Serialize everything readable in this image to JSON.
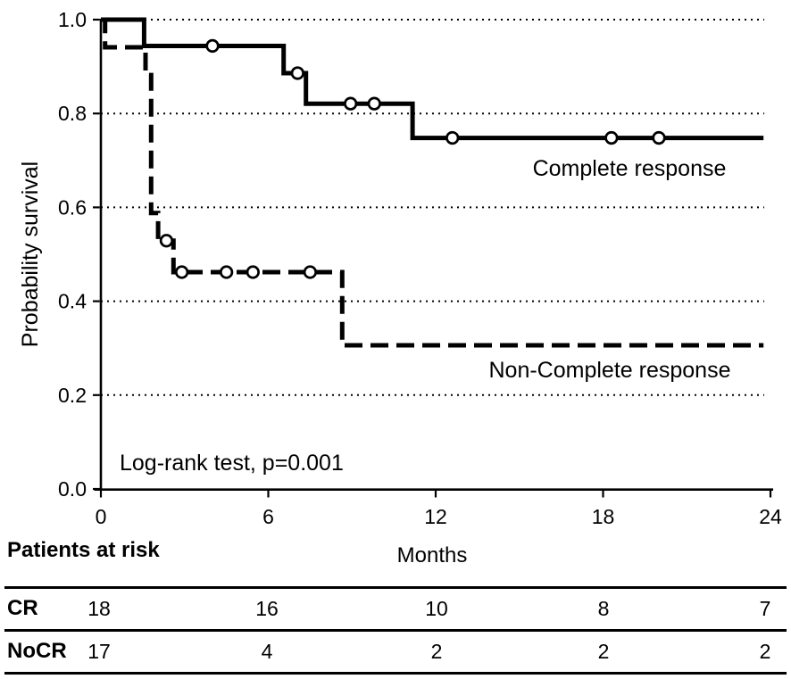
{
  "colors": {
    "line": "#000000",
    "background": "#ffffff",
    "censor_fill": "#ffffff"
  },
  "chart_data": {
    "type": "line",
    "subtype": "kaplan-meier-step",
    "title": "",
    "xlabel": "Months",
    "ylabel": "Probability survival",
    "xlim": [
      0,
      24
    ],
    "ylim": [
      0.0,
      1.0
    ],
    "xticks": [
      0,
      6,
      12,
      18,
      24
    ],
    "yticks": [
      0.0,
      0.2,
      0.4,
      0.6,
      0.8,
      1.0
    ],
    "grid": "dotted horizontal gridlines at each y tick",
    "legend_position": "inline text labels beside curves",
    "annotation": "Log-rank test, p=0.001",
    "series": [
      {
        "name": "Complete response",
        "line_style": "solid",
        "steps": [
          [
            0,
            1.0
          ],
          [
            1.55,
            1.0
          ],
          [
            1.55,
            0.944
          ],
          [
            6.55,
            0.944
          ],
          [
            6.55,
            0.886
          ],
          [
            7.35,
            0.886
          ],
          [
            7.35,
            0.821
          ],
          [
            11.17,
            0.821
          ],
          [
            11.17,
            0.748
          ],
          [
            23.75,
            0.748
          ]
        ],
        "censor_marks": [
          [
            4.0,
            0.944
          ],
          [
            7.05,
            0.886
          ],
          [
            8.95,
            0.821
          ],
          [
            9.8,
            0.821
          ],
          [
            12.6,
            0.748
          ],
          [
            18.3,
            0.748
          ],
          [
            20.0,
            0.748
          ]
        ]
      },
      {
        "name": "Non-Complete response",
        "line_style": "dashed",
        "steps": [
          [
            0,
            1.0
          ],
          [
            0.15,
            1.0
          ],
          [
            0.15,
            0.941
          ],
          [
            1.6,
            0.941
          ],
          [
            1.6,
            0.882
          ],
          [
            1.8,
            0.882
          ],
          [
            1.8,
            0.588
          ],
          [
            2.05,
            0.588
          ],
          [
            2.05,
            0.529
          ],
          [
            2.6,
            0.529
          ],
          [
            2.6,
            0.462
          ],
          [
            8.65,
            0.462
          ],
          [
            8.65,
            0.306
          ],
          [
            23.75,
            0.306
          ]
        ],
        "censor_marks": [
          [
            2.35,
            0.529
          ],
          [
            2.9,
            0.462
          ],
          [
            4.5,
            0.462
          ],
          [
            5.45,
            0.462
          ],
          [
            7.5,
            0.462
          ]
        ]
      }
    ],
    "risk_table": {
      "title": "Patients at risk",
      "time_points": [
        0,
        6,
        12,
        18,
        24
      ],
      "rows": [
        {
          "label": "CR",
          "counts": [
            "18",
            "16",
            "10",
            "8",
            "7"
          ]
        },
        {
          "label": "NoCR",
          "counts": [
            "17",
            "4",
            "2",
            "2",
            "2"
          ]
        }
      ]
    }
  }
}
